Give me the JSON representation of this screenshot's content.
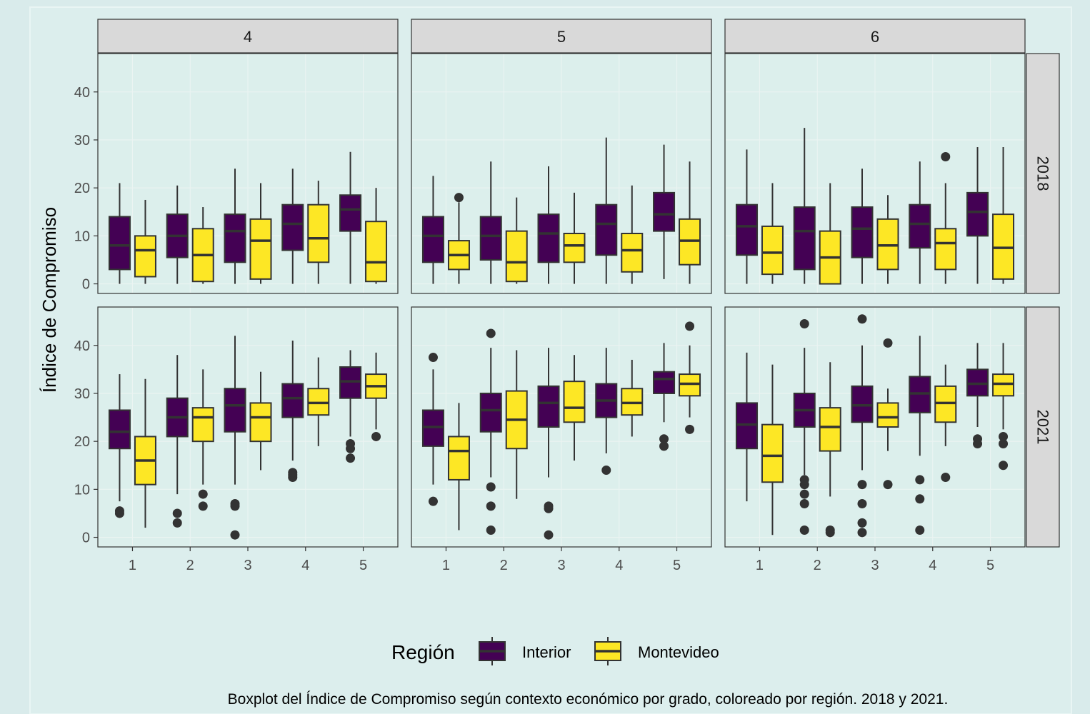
{
  "chart_data": {
    "type": "boxplot",
    "ylabel": "Índice de Compromiso",
    "ylim": [
      -2,
      48
    ],
    "y_ticks": [
      0,
      10,
      20,
      30,
      40
    ],
    "x_categories": [
      "1",
      "2",
      "3",
      "4",
      "5"
    ],
    "column_facets": [
      "4",
      "5",
      "6"
    ],
    "row_facets": [
      "2018",
      "2021"
    ],
    "legend": {
      "title": "Región",
      "entries": [
        {
          "name": "Interior",
          "color": "#440154"
        },
        {
          "name": "Montevideo",
          "color": "#fde725"
        }
      ],
      "placement": "bottom"
    },
    "caption": "Boxplot del Índice de Compromiso según contexto económico por grado, coloreado por región. 2018 y 2021.",
    "grid": true,
    "panels": [
      {
        "col": "4",
        "row": "2018",
        "boxes": [
          {
            "x": "1",
            "region": "Interior",
            "stats": [
              0,
              3,
              8,
              14,
              21
            ],
            "outliers": []
          },
          {
            "x": "1",
            "region": "Montevideo",
            "stats": [
              0,
              1.5,
              7,
              10,
              17.5
            ],
            "outliers": []
          },
          {
            "x": "2",
            "region": "Interior",
            "stats": [
              0,
              5.5,
              10,
              14.5,
              20.5
            ],
            "outliers": []
          },
          {
            "x": "2",
            "region": "Montevideo",
            "stats": [
              0,
              0.5,
              6,
              11.5,
              16
            ],
            "outliers": []
          },
          {
            "x": "3",
            "region": "Interior",
            "stats": [
              0,
              4.5,
              11,
              14.5,
              24
            ],
            "outliers": []
          },
          {
            "x": "3",
            "region": "Montevideo",
            "stats": [
              0,
              1,
              9,
              13.5,
              21
            ],
            "outliers": []
          },
          {
            "x": "4",
            "region": "Interior",
            "stats": [
              0,
              7,
              12.5,
              16.5,
              24
            ],
            "outliers": []
          },
          {
            "x": "4",
            "region": "Montevideo",
            "stats": [
              0,
              4.5,
              9.5,
              16.5,
              21.5
            ],
            "outliers": []
          },
          {
            "x": "5",
            "region": "Interior",
            "stats": [
              0,
              11,
              15.5,
              18.5,
              27.5
            ],
            "outliers": []
          },
          {
            "x": "5",
            "region": "Montevideo",
            "stats": [
              0,
              0.5,
              4.5,
              13,
              20
            ],
            "outliers": []
          }
        ]
      },
      {
        "col": "5",
        "row": "2018",
        "boxes": [
          {
            "x": "1",
            "region": "Interior",
            "stats": [
              0,
              4.5,
              10,
              14,
              22.5
            ],
            "outliers": []
          },
          {
            "x": "1",
            "region": "Montevideo",
            "stats": [
              0,
              3,
              6,
              9,
              17
            ],
            "outliers": [
              18
            ]
          },
          {
            "x": "2",
            "region": "Interior",
            "stats": [
              0,
              5,
              10,
              14,
              25.5
            ],
            "outliers": []
          },
          {
            "x": "2",
            "region": "Montevideo",
            "stats": [
              0,
              0.5,
              4.5,
              11,
              18
            ],
            "outliers": []
          },
          {
            "x": "3",
            "region": "Interior",
            "stats": [
              0,
              4.5,
              10.5,
              14.5,
              24.5
            ],
            "outliers": []
          },
          {
            "x": "3",
            "region": "Montevideo",
            "stats": [
              0,
              4.5,
              8,
              10.5,
              19
            ],
            "outliers": []
          },
          {
            "x": "4",
            "region": "Interior",
            "stats": [
              0,
              6,
              12.5,
              16.5,
              30.5
            ],
            "outliers": []
          },
          {
            "x": "4",
            "region": "Montevideo",
            "stats": [
              0,
              2.5,
              7,
              10.5,
              20.5
            ],
            "outliers": []
          },
          {
            "x": "5",
            "region": "Interior",
            "stats": [
              1,
              11,
              14.5,
              19,
              29
            ],
            "outliers": []
          },
          {
            "x": "5",
            "region": "Montevideo",
            "stats": [
              0,
              4,
              9,
              13.5,
              25.5
            ],
            "outliers": []
          }
        ]
      },
      {
        "col": "6",
        "row": "2018",
        "boxes": [
          {
            "x": "1",
            "region": "Interior",
            "stats": [
              0,
              6,
              12,
              16.5,
              28
            ],
            "outliers": []
          },
          {
            "x": "1",
            "region": "Montevideo",
            "stats": [
              0,
              2,
              6.5,
              12,
              21
            ],
            "outliers": []
          },
          {
            "x": "2",
            "region": "Interior",
            "stats": [
              0,
              3,
              11,
              16,
              32.5
            ],
            "outliers": []
          },
          {
            "x": "2",
            "region": "Montevideo",
            "stats": [
              0,
              0,
              5.5,
              11,
              21
            ],
            "outliers": []
          },
          {
            "x": "3",
            "region": "Interior",
            "stats": [
              0,
              5.5,
              11.5,
              16,
              24
            ],
            "outliers": []
          },
          {
            "x": "3",
            "region": "Montevideo",
            "stats": [
              0,
              3,
              8,
              13.5,
              18.5
            ],
            "outliers": []
          },
          {
            "x": "4",
            "region": "Interior",
            "stats": [
              0,
              7.5,
              12.5,
              16.5,
              25.5
            ],
            "outliers": []
          },
          {
            "x": "4",
            "region": "Montevideo",
            "stats": [
              0,
              3,
              8.5,
              11.5,
              21
            ],
            "outliers": [
              26.5
            ]
          },
          {
            "x": "5",
            "region": "Interior",
            "stats": [
              0,
              10,
              15,
              19,
              28.5
            ],
            "outliers": []
          },
          {
            "x": "5",
            "region": "Montevideo",
            "stats": [
              0,
              1,
              7.5,
              14.5,
              28.5
            ],
            "outliers": []
          }
        ]
      },
      {
        "col": "4",
        "row": "2021",
        "boxes": [
          {
            "x": "1",
            "region": "Interior",
            "stats": [
              7.5,
              18.5,
              22,
              26.5,
              34
            ],
            "outliers": [
              5,
              5.5
            ]
          },
          {
            "x": "1",
            "region": "Montevideo",
            "stats": [
              2,
              11,
              16,
              21,
              33
            ],
            "outliers": []
          },
          {
            "x": "2",
            "region": "Interior",
            "stats": [
              9,
              21,
              25,
              29,
              38
            ],
            "outliers": [
              3,
              5
            ]
          },
          {
            "x": "2",
            "region": "Montevideo",
            "stats": [
              11,
              20,
              25,
              27,
              35
            ],
            "outliers": [
              6.5,
              9
            ]
          },
          {
            "x": "3",
            "region": "Interior",
            "stats": [
              11,
              22,
              27.5,
              31,
              42
            ],
            "outliers": [
              0.5,
              6.5,
              7
            ]
          },
          {
            "x": "3",
            "region": "Montevideo",
            "stats": [
              14,
              20,
              25,
              28,
              34.5
            ],
            "outliers": []
          },
          {
            "x": "4",
            "region": "Interior",
            "stats": [
              16,
              25,
              29,
              32,
              41
            ],
            "outliers": [
              12.5,
              13,
              13.5
            ]
          },
          {
            "x": "4",
            "region": "Montevideo",
            "stats": [
              19,
              25.5,
              28,
              31,
              37.5
            ],
            "outliers": []
          },
          {
            "x": "5",
            "region": "Interior",
            "stats": [
              21,
              29,
              32.5,
              35.5,
              39
            ],
            "outliers": [
              16.5,
              18.5,
              19.5
            ]
          },
          {
            "x": "5",
            "region": "Montevideo",
            "stats": [
              22.5,
              29,
              31.5,
              34,
              38.5
            ],
            "outliers": [
              21
            ]
          }
        ]
      },
      {
        "col": "5",
        "row": "2021",
        "boxes": [
          {
            "x": "1",
            "region": "Interior",
            "stats": [
              11,
              19,
              23,
              26.5,
              35
            ],
            "outliers": [
              7.5,
              37.5
            ]
          },
          {
            "x": "1",
            "region": "Montevideo",
            "stats": [
              1.5,
              12,
              18,
              21,
              28
            ],
            "outliers": []
          },
          {
            "x": "2",
            "region": "Interior",
            "stats": [
              12.5,
              22,
              26.5,
              30,
              39.5
            ],
            "outliers": [
              1.5,
              6.5,
              10.5,
              42.5
            ]
          },
          {
            "x": "2",
            "region": "Montevideo",
            "stats": [
              8,
              18.5,
              24.5,
              30.5,
              39
            ],
            "outliers": []
          },
          {
            "x": "3",
            "region": "Interior",
            "stats": [
              12.5,
              23,
              28,
              31.5,
              39.5
            ],
            "outliers": [
              0.5,
              6,
              6.5
            ]
          },
          {
            "x": "3",
            "region": "Montevideo",
            "stats": [
              16,
              24,
              27,
              32.5,
              38
            ],
            "outliers": []
          },
          {
            "x": "4",
            "region": "Interior",
            "stats": [
              17.5,
              25,
              28.5,
              32,
              39.5
            ],
            "outliers": [
              14
            ]
          },
          {
            "x": "4",
            "region": "Montevideo",
            "stats": [
              21,
              25.5,
              28,
              31,
              37
            ],
            "outliers": []
          },
          {
            "x": "5",
            "region": "Interior",
            "stats": [
              24,
              30,
              33,
              34.5,
              40.5
            ],
            "outliers": [
              19,
              20.5
            ]
          },
          {
            "x": "5",
            "region": "Montevideo",
            "stats": [
              25,
              29.5,
              32,
              34,
              40
            ],
            "outliers": [
              22.5,
              44
            ]
          }
        ]
      },
      {
        "col": "6",
        "row": "2021",
        "boxes": [
          {
            "x": "1",
            "region": "Interior",
            "stats": [
              7.5,
              18.5,
              23.5,
              28,
              38.5
            ],
            "outliers": []
          },
          {
            "x": "1",
            "region": "Montevideo",
            "stats": [
              0.5,
              11.5,
              17,
              23.5,
              36
            ],
            "outliers": []
          },
          {
            "x": "2",
            "region": "Interior",
            "stats": [
              13,
              23,
              26.5,
              30,
              39.5
            ],
            "outliers": [
              1.5,
              7,
              9,
              11,
              12,
              44.5
            ]
          },
          {
            "x": "2",
            "region": "Montevideo",
            "stats": [
              8.5,
              18,
              23,
              27,
              36.5
            ],
            "outliers": [
              1,
              1.5
            ]
          },
          {
            "x": "3",
            "region": "Interior",
            "stats": [
              14,
              24,
              27.5,
              31.5,
              40
            ],
            "outliers": [
              1,
              3,
              7,
              11,
              45.5
            ]
          },
          {
            "x": "3",
            "region": "Montevideo",
            "stats": [
              18,
              23,
              25,
              28,
              31
            ],
            "outliers": [
              11,
              40.5
            ]
          },
          {
            "x": "4",
            "region": "Interior",
            "stats": [
              17,
              26,
              30,
              33.5,
              42
            ],
            "outliers": [
              1.5,
              8,
              12
            ]
          },
          {
            "x": "4",
            "region": "Montevideo",
            "stats": [
              19,
              24,
              28,
              31.5,
              36
            ],
            "outliers": [
              12.5
            ]
          },
          {
            "x": "5",
            "region": "Interior",
            "stats": [
              23,
              29.5,
              32,
              35,
              40.5
            ],
            "outliers": [
              19.5,
              20.5
            ]
          },
          {
            "x": "5",
            "region": "Montevideo",
            "stats": [
              22.5,
              29.5,
              32,
              34,
              40.5
            ],
            "outliers": [
              15,
              19.5,
              21
            ]
          }
        ]
      }
    ]
  }
}
